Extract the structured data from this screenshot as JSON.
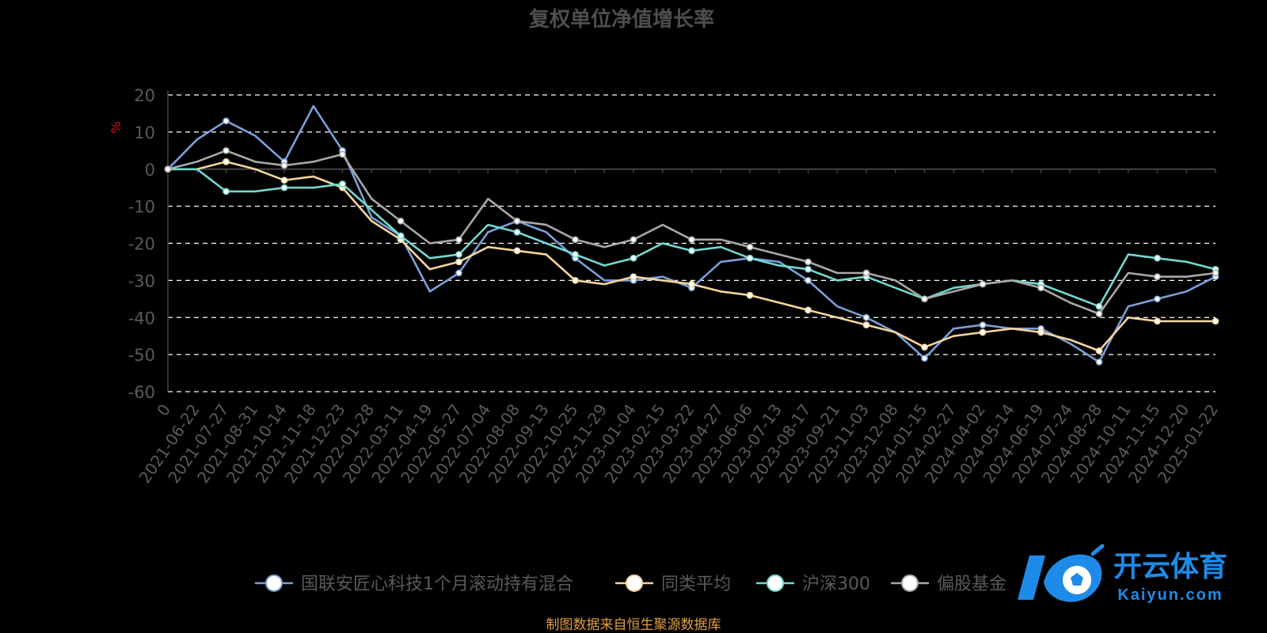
{
  "chart_data": {
    "type": "line",
    "title": "复权单位净值增长率",
    "ylabel": "%",
    "xlabel": "",
    "ylim": [
      -60,
      20
    ],
    "yticks": [
      20,
      10,
      0,
      -10,
      -20,
      -30,
      -40,
      -50,
      -60
    ],
    "grid": true,
    "legend_position": "bottom",
    "categories": [
      "0",
      "2021-06-22",
      "2021-07-27",
      "2021-08-31",
      "2021-10-14",
      "2021-11-18",
      "2021-12-23",
      "2022-01-28",
      "2022-03-11",
      "2022-04-19",
      "2022-05-27",
      "2022-07-04",
      "2022-08-08",
      "2022-09-13",
      "2022-10-25",
      "2022-11-29",
      "2023-01-04",
      "2023-02-15",
      "2023-03-22",
      "2023-04-27",
      "2023-06-06",
      "2023-07-13",
      "2023-08-17",
      "2023-09-21",
      "2023-11-03",
      "2023-12-08",
      "2024-01-15",
      "2024-02-27",
      "2024-04-02",
      "2024-05-14",
      "2024-06-19",
      "2024-07-24",
      "2024-08-28",
      "2024-10-11",
      "2024-11-15",
      "2024-12-20",
      "2025-01-22"
    ],
    "series": [
      {
        "name": "国联安匠心科技1个月滚动持有混合",
        "color": "#7b9fd8",
        "values": [
          0,
          8,
          13,
          9,
          2,
          17,
          5,
          -13,
          -18,
          -33,
          -28,
          -17,
          -14,
          -17,
          -24,
          -30,
          -30,
          -29,
          -32,
          -25,
          -24,
          -25,
          -30,
          -37,
          -40,
          -44,
          -51,
          -43,
          -42,
          -43,
          -43,
          -47,
          -52,
          -37,
          -35,
          -33,
          -29
        ]
      },
      {
        "name": "同类平均",
        "color": "#f5d49b",
        "values": [
          0,
          0,
          2,
          0,
          -3,
          -2,
          -5,
          -14,
          -19,
          -27,
          -25,
          -21,
          -22,
          -23,
          -30,
          -31,
          -29,
          -30,
          -31,
          -33,
          -34,
          -36,
          -38,
          -40,
          -42,
          -44,
          -48,
          -45,
          -44,
          -43,
          -44,
          -46,
          -49,
          -40,
          -41,
          -41,
          -41
        ]
      },
      {
        "name": "沪深300",
        "color": "#72d8d0",
        "values": [
          0,
          0,
          -6,
          -6,
          -5,
          -5,
          -4,
          -11,
          -18,
          -24,
          -23,
          -15,
          -17,
          -20,
          -23,
          -26,
          -24,
          -20,
          -22,
          -21,
          -24,
          -26,
          -27,
          -30,
          -29,
          -32,
          -35,
          -32,
          -31,
          -30,
          -31,
          -34,
          -37,
          -23,
          -24,
          -25,
          -27
        ]
      },
      {
        "name": "偏股基金",
        "color": "#a8a8a8",
        "values": [
          0,
          2,
          5,
          2,
          1,
          2,
          4,
          -8,
          -14,
          -20,
          -19,
          -8,
          -14,
          -15,
          -19,
          -21,
          -19,
          -15,
          -19,
          -19,
          -21,
          -23,
          -25,
          -28,
          -28,
          -30,
          -35,
          -33,
          -31,
          -30,
          -32,
          -36,
          -39,
          -28,
          -29,
          -29,
          -28
        ]
      }
    ]
  },
  "source_note": "制图数据来自恒生聚源数据库",
  "logo": {
    "brand": "开云体育",
    "domain": "Kaiyun.com"
  },
  "colors": {
    "background": "#000000",
    "title": "#4e4e4e",
    "axis_text": "#5a5a5a",
    "grid": "#ffffff",
    "ylabel": "#e01010",
    "source": "#e0a040",
    "logo_blue": "#1f8be8"
  }
}
